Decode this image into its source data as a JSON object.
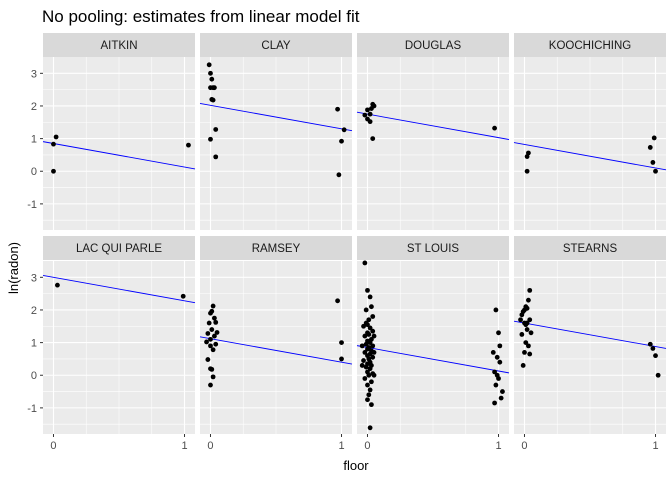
{
  "chart_data": {
    "type": "scatter",
    "title": "No pooling: estimates from linear model fit",
    "xlabel": "floor",
    "ylabel": "ln(radon)",
    "xlim": [
      -0.08,
      1.08
    ],
    "ylim": [
      -1.8,
      3.5
    ],
    "x_ticks": [
      0,
      1
    ],
    "y_ticks": [
      -1,
      0,
      1,
      2,
      3
    ],
    "grid": true,
    "layout": "facet 2x4",
    "colors": {
      "points": "#000000",
      "fit_line": "#0000ff",
      "panel": "#ebebeb",
      "strip": "#d9d9d9",
      "grid": "#ffffff"
    },
    "panels": [
      {
        "county": "AITKIN",
        "fit": {
          "intercept": 0.85,
          "slope": -0.72
        },
        "points": [
          [
            0.0,
            0.83
          ],
          [
            0.02,
            1.05
          ],
          [
            0.0,
            0.0
          ],
          [
            1.03,
            0.8
          ]
        ]
      },
      {
        "county": "CLAY",
        "fit": {
          "intercept": 2.02,
          "slope": -0.72
        },
        "points": [
          [
            -0.01,
            3.26
          ],
          [
            0.0,
            3.0
          ],
          [
            0.01,
            2.82
          ],
          [
            0.02,
            2.56
          ],
          [
            0.0,
            2.56
          ],
          [
            0.03,
            2.56
          ],
          [
            0.01,
            2.2
          ],
          [
            0.02,
            2.18
          ],
          [
            0.04,
            1.28
          ],
          [
            0.0,
            0.98
          ],
          [
            0.04,
            0.44
          ],
          [
            0.97,
            1.9
          ],
          [
            1.02,
            1.27
          ],
          [
            1.0,
            0.92
          ],
          [
            0.98,
            -0.11
          ]
        ]
      },
      {
        "county": "DOUGLAS",
        "fit": {
          "intercept": 1.75,
          "slope": -0.72
        },
        "points": [
          [
            -0.02,
            1.72
          ],
          [
            0.0,
            1.88
          ],
          [
            0.02,
            1.75
          ],
          [
            0.03,
            1.92
          ],
          [
            0.05,
            2.0
          ],
          [
            0.04,
            2.05
          ],
          [
            0.0,
            1.6
          ],
          [
            0.02,
            1.52
          ],
          [
            0.04,
            1.0
          ],
          [
            0.97,
            1.32
          ]
        ]
      },
      {
        "county": "KOOCHICHING",
        "fit": {
          "intercept": 0.82,
          "slope": -0.72
        },
        "points": [
          [
            0.02,
            0.45
          ],
          [
            0.03,
            0.56
          ],
          [
            0.02,
            0.0
          ],
          [
            0.96,
            0.73
          ],
          [
            0.99,
            1.02
          ],
          [
            0.98,
            0.27
          ],
          [
            1.0,
            0.0
          ]
        ]
      },
      {
        "county": "LAC QUI PARLE",
        "fit": {
          "intercept": 3.0,
          "slope": -0.72
        },
        "points": [
          [
            0.03,
            2.76
          ],
          [
            0.99,
            2.42
          ]
        ]
      },
      {
        "county": "RAMSEY",
        "fit": {
          "intercept": 1.12,
          "slope": -0.72
        },
        "points": [
          [
            -0.03,
            1.02
          ],
          [
            -0.02,
            1.28
          ],
          [
            -0.01,
            1.6
          ],
          [
            0.0,
            1.9
          ],
          [
            0.01,
            1.96
          ],
          [
            0.02,
            2.12
          ],
          [
            0.03,
            1.75
          ],
          [
            0.04,
            1.62
          ],
          [
            0.05,
            1.31
          ],
          [
            0.0,
            0.9
          ],
          [
            0.02,
            0.78
          ],
          [
            0.03,
            1.2
          ],
          [
            0.01,
            1.4
          ],
          [
            -0.02,
            0.48
          ],
          [
            0.0,
            0.2
          ],
          [
            0.01,
            0.18
          ],
          [
            0.02,
            -0.05
          ],
          [
            0.0,
            -0.3
          ],
          [
            0.04,
            0.95
          ],
          [
            0.0,
            1.1
          ],
          [
            0.97,
            2.28
          ],
          [
            1.0,
            1.0
          ],
          [
            1.0,
            0.5
          ]
        ]
      },
      {
        "county": "ST LOUIS",
        "fit": {
          "intercept": 0.85,
          "slope": -0.72
        },
        "points": [
          [
            -0.02,
            3.44
          ],
          [
            0.0,
            2.6
          ],
          [
            0.02,
            2.4
          ],
          [
            0.03,
            2.1
          ],
          [
            -0.01,
            2.0
          ],
          [
            0.04,
            1.8
          ],
          [
            0.01,
            1.7
          ],
          [
            0.0,
            1.55
          ],
          [
            -0.03,
            1.5
          ],
          [
            0.02,
            1.45
          ],
          [
            0.04,
            1.35
          ],
          [
            0.0,
            1.3
          ],
          [
            0.01,
            1.25
          ],
          [
            -0.02,
            1.2
          ],
          [
            0.03,
            1.1
          ],
          [
            0.0,
            1.05
          ],
          [
            0.02,
            1.0
          ],
          [
            -0.01,
            0.95
          ],
          [
            0.04,
            0.9
          ],
          [
            0.01,
            0.85
          ],
          [
            0.0,
            0.8
          ],
          [
            0.03,
            0.75
          ],
          [
            -0.02,
            0.7
          ],
          [
            0.02,
            0.65
          ],
          [
            0.0,
            0.6
          ],
          [
            0.04,
            0.55
          ],
          [
            0.01,
            0.5
          ],
          [
            -0.03,
            0.45
          ],
          [
            0.02,
            0.4
          ],
          [
            0.0,
            0.35
          ],
          [
            0.03,
            0.3
          ],
          [
            -0.01,
            0.25
          ],
          [
            0.02,
            0.2
          ],
          [
            0.0,
            0.1
          ],
          [
            0.04,
            0.05
          ],
          [
            0.01,
            0.0
          ],
          [
            -0.02,
            -0.1
          ],
          [
            0.03,
            -0.2
          ],
          [
            0.0,
            -0.3
          ],
          [
            0.02,
            -0.45
          ],
          [
            0.01,
            -0.6
          ],
          [
            0.0,
            -0.75
          ],
          [
            0.03,
            -0.9
          ],
          [
            -0.01,
            1.6
          ],
          [
            0.05,
            1.2
          ],
          [
            0.05,
            0.7
          ],
          [
            -0.04,
            0.9
          ],
          [
            -0.04,
            0.3
          ],
          [
            0.05,
            0.0
          ],
          [
            0.02,
            -1.61
          ],
          [
            0.98,
            2.0
          ],
          [
            1.0,
            1.3
          ],
          [
            0.96,
            0.7
          ],
          [
            0.99,
            0.55
          ],
          [
            1.01,
            0.4
          ],
          [
            0.97,
            0.1
          ],
          [
            1.0,
            -0.1
          ],
          [
            0.98,
            -0.3
          ],
          [
            1.02,
            -0.7
          ],
          [
            0.97,
            -0.85
          ],
          [
            1.01,
            0.9
          ],
          [
            0.99,
            0.0
          ],
          [
            1.03,
            -0.5
          ]
        ]
      },
      {
        "county": "STEARNS",
        "fit": {
          "intercept": 1.6,
          "slope": -0.72
        },
        "points": [
          [
            -0.03,
            1.7
          ],
          [
            -0.02,
            1.85
          ],
          [
            -0.01,
            1.95
          ],
          [
            0.0,
            2.0
          ],
          [
            0.01,
            2.1
          ],
          [
            0.02,
            2.05
          ],
          [
            0.03,
            2.3
          ],
          [
            0.04,
            2.6
          ],
          [
            0.0,
            1.6
          ],
          [
            0.01,
            1.55
          ],
          [
            0.02,
            1.6
          ],
          [
            0.04,
            1.7
          ],
          [
            0.05,
            1.3
          ],
          [
            -0.02,
            1.25
          ],
          [
            0.01,
            1.0
          ],
          [
            0.03,
            0.9
          ],
          [
            0.0,
            0.7
          ],
          [
            0.04,
            0.65
          ],
          [
            -0.01,
            0.3
          ],
          [
            0.02,
            1.4
          ],
          [
            0.96,
            0.95
          ],
          [
            0.98,
            0.82
          ],
          [
            1.0,
            0.6
          ],
          [
            1.02,
            0.0
          ]
        ]
      }
    ]
  }
}
